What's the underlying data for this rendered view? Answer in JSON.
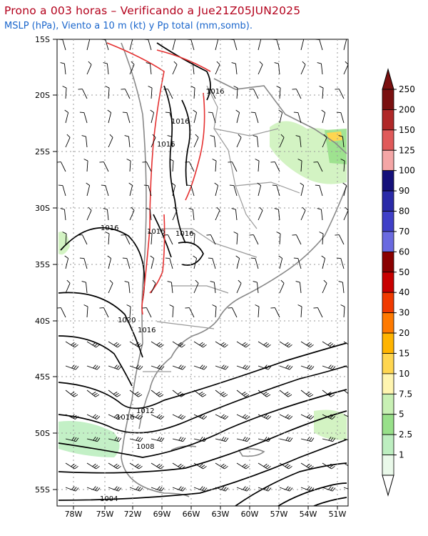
{
  "header": {
    "title": "Prono a 003 horas – Verificando a Jue21Z05JUN2025",
    "subtitle": "MSLP (hPa), Viento a 10 m (kt) y Pp total (mm,somb)."
  },
  "map": {
    "lat_labels": [
      "15S",
      "20S",
      "25S",
      "30S",
      "35S",
      "40S",
      "45S",
      "50S",
      "55S"
    ],
    "lon_labels": [
      "78W",
      "75W",
      "72W",
      "69W",
      "66W",
      "63W",
      "60W",
      "57W",
      "54W",
      "51W"
    ],
    "isobar_labels": [
      {
        "id": "a",
        "text": "1016"
      },
      {
        "id": "b",
        "text": "1016"
      },
      {
        "id": "c",
        "text": "1016"
      },
      {
        "id": "d",
        "text": "1016"
      },
      {
        "id": "e",
        "text": "1016"
      },
      {
        "id": "f",
        "text": "1016"
      },
      {
        "id": "g",
        "text": "1020"
      },
      {
        "id": "h",
        "text": "1016"
      },
      {
        "id": "i",
        "text": "1012"
      },
      {
        "id": "j",
        "text": "1016"
      },
      {
        "id": "k",
        "text": "1008"
      },
      {
        "id": "l",
        "text": "1004"
      }
    ],
    "colors": {
      "isobar": "#000000",
      "coast": "#888888",
      "red_contour": "#e53030",
      "grid": "#9a9a9a"
    }
  },
  "colorbar": {
    "labels": [
      "250",
      "200",
      "150",
      "125",
      "100",
      "90",
      "80",
      "70",
      "60",
      "50",
      "40",
      "30",
      "20",
      "15",
      "10",
      "7.5",
      "5",
      "2.5",
      "1"
    ],
    "colors": [
      "#7a1010",
      "#b02828",
      "#e05a5a",
      "#f4a6a6",
      "#14107a",
      "#2a2aa8",
      "#4040c8",
      "#6a6ae0",
      "#8a0000",
      "#c80000",
      "#f03a00",
      "#ff7a00",
      "#ffb400",
      "#ffd650",
      "#fff5b0",
      "#c8f0b4",
      "#98e08a",
      "#bdeec0",
      "#eaf9ea"
    ]
  }
}
